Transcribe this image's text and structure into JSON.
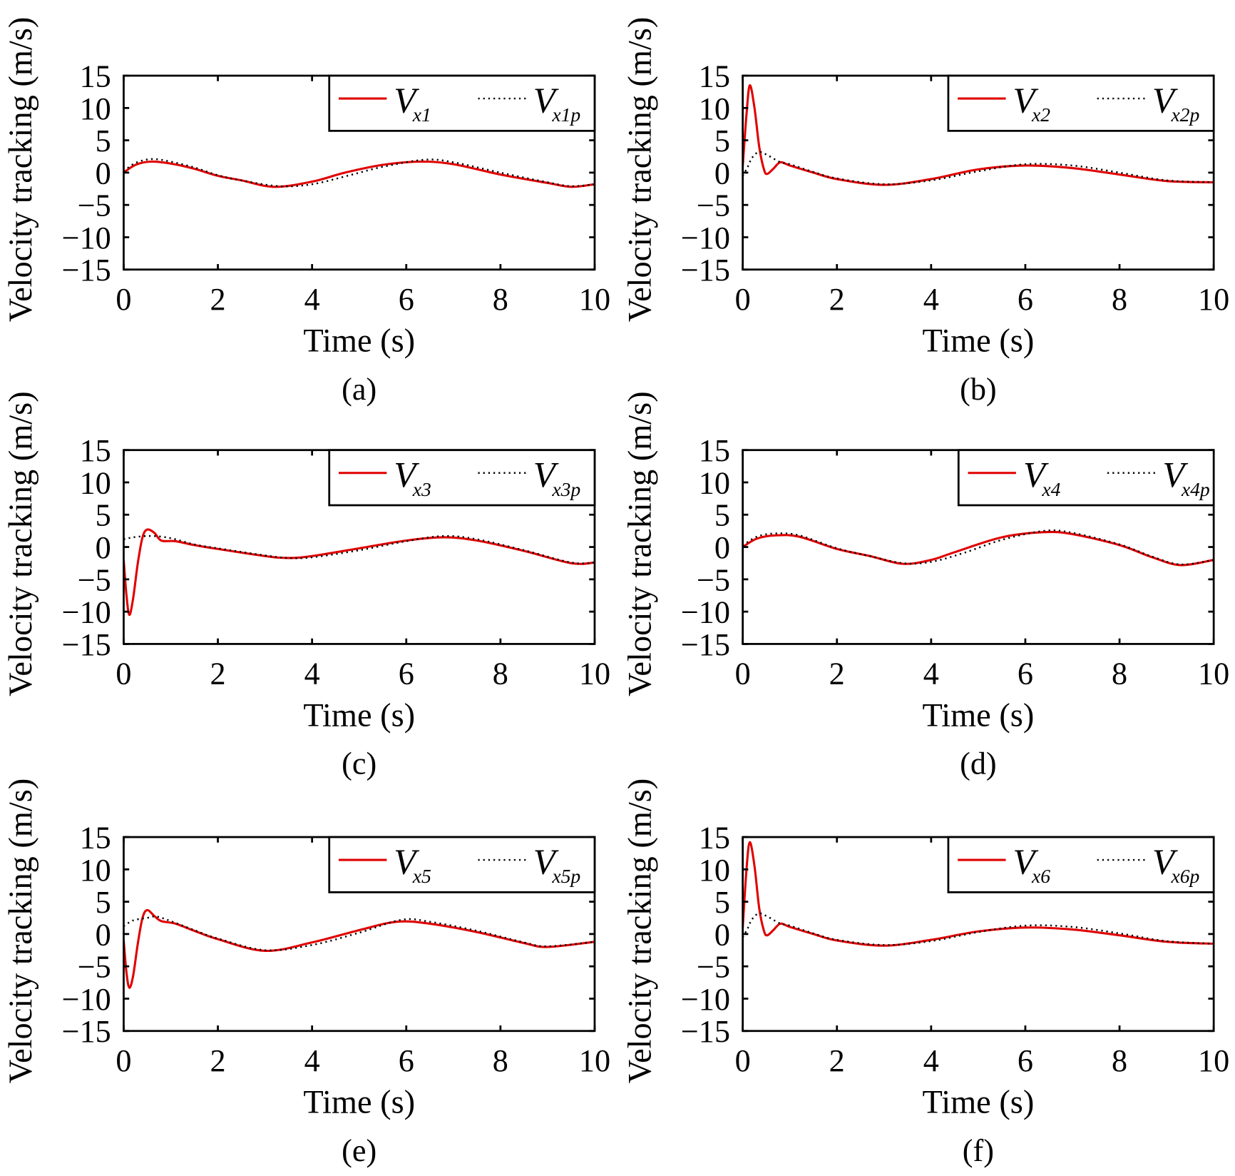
{
  "colors": {
    "tracking": "#e00000",
    "reference": "#000000"
  },
  "chart_data": [
    {
      "type": "line",
      "panel_label": "(a)",
      "xlabel": "Time (s)",
      "ylabel": "Velocity tracking (m/s)",
      "xlim": [
        0,
        10
      ],
      "ylim": [
        -15,
        15
      ],
      "xticks": [
        0,
        2,
        4,
        6,
        8,
        10
      ],
      "yticks": [
        15,
        10,
        5,
        0,
        -5,
        -10,
        -15
      ],
      "yticklabels": [
        "15",
        "10",
        "5",
        "0",
        "−5",
        "−10",
        "−15"
      ],
      "grid": false,
      "legend": "top-right",
      "series": [
        {
          "name": "V",
          "sub": "x1",
          "style": "solid",
          "points": [
            [
              0,
              0
            ],
            [
              0.25,
              1.2
            ],
            [
              0.57,
              1.7
            ],
            [
              1,
              1.4
            ],
            [
              1.5,
              0.6
            ],
            [
              2,
              -0.5
            ],
            [
              2.5,
              -1.2
            ],
            [
              3.2,
              -2.2
            ],
            [
              4,
              -1.4
            ],
            [
              4.7,
              0
            ],
            [
              5.5,
              1.2
            ],
            [
              6.3,
              1.7
            ],
            [
              7,
              1.3
            ],
            [
              8,
              -0.3
            ],
            [
              9,
              -1.6
            ],
            [
              9.5,
              -2.2
            ],
            [
              10,
              -1.8
            ]
          ]
        },
        {
          "name": "V",
          "sub": "x1p",
          "style": "dotted",
          "points": [
            [
              0,
              0.2
            ],
            [
              0.25,
              1.5
            ],
            [
              0.6,
              2.1
            ],
            [
              1,
              1.7
            ],
            [
              1.5,
              0.8
            ],
            [
              2,
              -0.4
            ],
            [
              2.5,
              -1.2
            ],
            [
              3.3,
              -2.1
            ],
            [
              4,
              -1.8
            ],
            [
              4.8,
              -0.4
            ],
            [
              5.5,
              0.9
            ],
            [
              6.4,
              2.0
            ],
            [
              7,
              1.6
            ],
            [
              8,
              0
            ],
            [
              9,
              -1.5
            ],
            [
              9.5,
              -2.1
            ],
            [
              10,
              -1.8
            ]
          ]
        }
      ]
    },
    {
      "type": "line",
      "panel_label": "(b)",
      "xlabel": "Time (s)",
      "ylabel": "Velocity tracking (m/s)",
      "xlim": [
        0,
        10
      ],
      "ylim": [
        -15,
        15
      ],
      "xticks": [
        0,
        2,
        4,
        6,
        8,
        10
      ],
      "yticks": [
        15,
        10,
        5,
        0,
        -5,
        -10,
        -15
      ],
      "yticklabels": [
        "15",
        "10",
        "5",
        "0",
        "−5",
        "−10",
        "−15"
      ],
      "grid": false,
      "legend": "top-right",
      "series": [
        {
          "name": "V",
          "sub": "x2",
          "style": "solid",
          "points": [
            [
              0,
              1
            ],
            [
              0.08,
              9
            ],
            [
              0.15,
              13.5
            ],
            [
              0.25,
              10
            ],
            [
              0.35,
              4
            ],
            [
              0.45,
              0.5
            ],
            [
              0.52,
              -0.2
            ],
            [
              0.65,
              0.6
            ],
            [
              0.8,
              1.6
            ],
            [
              1,
              1.1
            ],
            [
              1.5,
              0
            ],
            [
              2,
              -1
            ],
            [
              3,
              -1.9
            ],
            [
              4,
              -1.0
            ],
            [
              5,
              0.5
            ],
            [
              6,
              1.1
            ],
            [
              7,
              0.7
            ],
            [
              8,
              -0.3
            ],
            [
              9,
              -1.3
            ],
            [
              10,
              -1.5
            ]
          ]
        },
        {
          "name": "V",
          "sub": "x2p",
          "style": "dotted",
          "points": [
            [
              0,
              -0.5
            ],
            [
              0.1,
              0.8
            ],
            [
              0.2,
              2.3
            ],
            [
              0.35,
              3.2
            ],
            [
              0.55,
              2.6
            ],
            [
              0.8,
              1.6
            ],
            [
              1,
              1.3
            ],
            [
              1.5,
              0.1
            ],
            [
              2,
              -0.9
            ],
            [
              3,
              -1.8
            ],
            [
              4,
              -1.2
            ],
            [
              5,
              0.2
            ],
            [
              6,
              1.3
            ],
            [
              7,
              1.1
            ],
            [
              8,
              0
            ],
            [
              9,
              -1.2
            ],
            [
              10,
              -1.5
            ]
          ]
        }
      ]
    },
    {
      "type": "line",
      "panel_label": "(c)",
      "xlabel": "Time (s)",
      "ylabel": "Velocity tracking (m/s)",
      "xlim": [
        0,
        10
      ],
      "ylim": [
        -15,
        15
      ],
      "xticks": [
        0,
        2,
        4,
        6,
        8,
        10
      ],
      "yticks": [
        15,
        10,
        5,
        0,
        -5,
        -10,
        -15
      ],
      "yticklabels": [
        "15",
        "10",
        "5",
        "0",
        "−5",
        "−10",
        "−15"
      ],
      "grid": false,
      "legend": "top-right",
      "series": [
        {
          "name": "V",
          "sub": "x3",
          "style": "solid",
          "points": [
            [
              0,
              -2
            ],
            [
              0.06,
              -7.5
            ],
            [
              0.12,
              -10.5
            ],
            [
              0.2,
              -8
            ],
            [
              0.3,
              -2.5
            ],
            [
              0.4,
              1.5
            ],
            [
              0.5,
              2.7
            ],
            [
              0.65,
              2.2
            ],
            [
              0.8,
              1.0
            ],
            [
              1.1,
              0.9
            ],
            [
              1.5,
              0.3
            ],
            [
              2,
              -0.3
            ],
            [
              3,
              -1.4
            ],
            [
              3.5,
              -1.7
            ],
            [
              4,
              -1.4
            ],
            [
              5,
              -0.2
            ],
            [
              6,
              1.0
            ],
            [
              6.8,
              1.5
            ],
            [
              7.5,
              1.0
            ],
            [
              8.5,
              -0.6
            ],
            [
              9.5,
              -2.5
            ],
            [
              10,
              -2.4
            ]
          ]
        },
        {
          "name": "V",
          "sub": "x3p",
          "style": "dotted",
          "points": [
            [
              0,
              1.2
            ],
            [
              0.2,
              1.5
            ],
            [
              0.5,
              1.7
            ],
            [
              0.8,
              1.6
            ],
            [
              1.1,
              1.2
            ],
            [
              1.5,
              0.4
            ],
            [
              2,
              -0.2
            ],
            [
              3,
              -1.3
            ],
            [
              3.5,
              -1.7
            ],
            [
              4,
              -1.6
            ],
            [
              5,
              -0.5
            ],
            [
              6,
              0.9
            ],
            [
              6.8,
              1.7
            ],
            [
              7.5,
              1.2
            ],
            [
              8.5,
              -0.5
            ],
            [
              9.5,
              -2.4
            ],
            [
              10,
              -2.4
            ]
          ]
        }
      ]
    },
    {
      "type": "line",
      "panel_label": "(d)",
      "xlabel": "Time (s)",
      "ylabel": "Velocity tracking (m/s)",
      "xlim": [
        0,
        10
      ],
      "ylim": [
        -15,
        15
      ],
      "xticks": [
        0,
        2,
        4,
        6,
        8,
        10
      ],
      "yticks": [
        15,
        10,
        5,
        0,
        -5,
        -10,
        -15
      ],
      "yticklabels": [
        "15",
        "10",
        "5",
        "0",
        "−5",
        "−10",
        "−15"
      ],
      "grid": false,
      "legend": "top-right",
      "series": [
        {
          "name": "V",
          "sub": "x4",
          "style": "solid",
          "points": [
            [
              0,
              0
            ],
            [
              0.3,
              1.3
            ],
            [
              0.7,
              1.8
            ],
            [
              1.2,
              1.6
            ],
            [
              2,
              -0.3
            ],
            [
              2.7,
              -1.4
            ],
            [
              3.4,
              -2.6
            ],
            [
              4,
              -2
            ],
            [
              4.5,
              -0.8
            ],
            [
              5.5,
              1.5
            ],
            [
              6.4,
              2.3
            ],
            [
              7,
              2.0
            ],
            [
              8,
              0.3
            ],
            [
              8.7,
              -1.6
            ],
            [
              9.3,
              -2.8
            ],
            [
              10,
              -2.0
            ]
          ]
        },
        {
          "name": "V",
          "sub": "x4p",
          "style": "dotted",
          "points": [
            [
              0,
              0.2
            ],
            [
              0.3,
              1.6
            ],
            [
              0.7,
              2.1
            ],
            [
              1.2,
              1.8
            ],
            [
              2,
              -0.2
            ],
            [
              2.7,
              -1.4
            ],
            [
              3.4,
              -2.5
            ],
            [
              4,
              -2.3
            ],
            [
              4.7,
              -0.9
            ],
            [
              5.5,
              1.1
            ],
            [
              6.4,
              2.5
            ],
            [
              7,
              2.2
            ],
            [
              8,
              0.4
            ],
            [
              8.7,
              -1.5
            ],
            [
              9.3,
              -2.7
            ],
            [
              10,
              -2.0
            ]
          ]
        }
      ]
    },
    {
      "type": "line",
      "panel_label": "(e)",
      "xlabel": "Time (s)",
      "ylabel": "Velocity tracking (m/s)",
      "xlim": [
        0,
        10
      ],
      "ylim": [
        -15,
        15
      ],
      "xticks": [
        0,
        2,
        4,
        6,
        8,
        10
      ],
      "yticks": [
        15,
        10,
        5,
        0,
        -5,
        -10,
        -15
      ],
      "yticklabels": [
        "15",
        "10",
        "5",
        "0",
        "−5",
        "−10",
        "−15"
      ],
      "grid": false,
      "legend": "top-right",
      "series": [
        {
          "name": "V",
          "sub": "x5",
          "style": "solid",
          "points": [
            [
              0,
              -1
            ],
            [
              0.06,
              -6
            ],
            [
              0.12,
              -8.3
            ],
            [
              0.2,
              -6.5
            ],
            [
              0.3,
              -1.5
            ],
            [
              0.4,
              2.5
            ],
            [
              0.5,
              3.7
            ],
            [
              0.65,
              2.8
            ],
            [
              0.8,
              2.0
            ],
            [
              1.1,
              1.6
            ],
            [
              1.5,
              0.5
            ],
            [
              2,
              -0.8
            ],
            [
              3,
              -2.6
            ],
            [
              4,
              -1.3
            ],
            [
              5,
              0.6
            ],
            [
              5.8,
              1.9
            ],
            [
              6.5,
              1.6
            ],
            [
              7.5,
              0.3
            ],
            [
              8.5,
              -1.4
            ],
            [
              9,
              -2.0
            ],
            [
              10,
              -1.2
            ]
          ]
        },
        {
          "name": "V",
          "sub": "x5p",
          "style": "dotted",
          "points": [
            [
              0,
              1.2
            ],
            [
              0.2,
              2.1
            ],
            [
              0.5,
              2.5
            ],
            [
              0.7,
              2.7
            ],
            [
              1,
              2.0
            ],
            [
              1.5,
              0.6
            ],
            [
              2,
              -0.7
            ],
            [
              3,
              -2.5
            ],
            [
              4,
              -1.7
            ],
            [
              5,
              0.2
            ],
            [
              5.9,
              2.2
            ],
            [
              6.5,
              1.9
            ],
            [
              7.5,
              0.5
            ],
            [
              8.5,
              -1.3
            ],
            [
              9,
              -1.9
            ],
            [
              10,
              -1.2
            ]
          ]
        }
      ]
    },
    {
      "type": "line",
      "panel_label": "(f)",
      "xlabel": "Time (s)",
      "ylabel": "Velocity tracking (m/s)",
      "xlim": [
        0,
        10
      ],
      "ylim": [
        -15,
        15
      ],
      "xticks": [
        0,
        2,
        4,
        6,
        8,
        10
      ],
      "yticks": [
        15,
        10,
        5,
        0,
        -5,
        -10,
        -15
      ],
      "yticklabels": [
        "15",
        "10",
        "5",
        "0",
        "−5",
        "−10",
        "−15"
      ],
      "grid": false,
      "legend": "top-right",
      "series": [
        {
          "name": "V",
          "sub": "x6",
          "style": "solid",
          "points": [
            [
              0,
              1
            ],
            [
              0.08,
              10
            ],
            [
              0.15,
              14.2
            ],
            [
              0.25,
              10.5
            ],
            [
              0.35,
              4
            ],
            [
              0.45,
              0.5
            ],
            [
              0.52,
              -0.2
            ],
            [
              0.65,
              0.6
            ],
            [
              0.8,
              1.6
            ],
            [
              1,
              1.1
            ],
            [
              1.5,
              0
            ],
            [
              2,
              -1
            ],
            [
              3,
              -1.8
            ],
            [
              4,
              -0.9
            ],
            [
              5,
              0.4
            ],
            [
              6,
              1.0
            ],
            [
              7,
              0.7
            ],
            [
              8,
              -0.2
            ],
            [
              9,
              -1.2
            ],
            [
              10,
              -1.5
            ]
          ]
        },
        {
          "name": "V",
          "sub": "x6p",
          "style": "dotted",
          "points": [
            [
              0,
              -0.5
            ],
            [
              0.1,
              0.8
            ],
            [
              0.2,
              2.3
            ],
            [
              0.35,
              3.2
            ],
            [
              0.55,
              2.6
            ],
            [
              0.8,
              1.6
            ],
            [
              1,
              1.3
            ],
            [
              1.5,
              0.1
            ],
            [
              2,
              -0.9
            ],
            [
              3,
              -1.7
            ],
            [
              4,
              -1.1
            ],
            [
              5,
              0.3
            ],
            [
              6,
              1.3
            ],
            [
              7,
              1.1
            ],
            [
              8,
              0.1
            ],
            [
              9,
              -1.1
            ],
            [
              10,
              -1.5
            ]
          ]
        }
      ]
    }
  ]
}
